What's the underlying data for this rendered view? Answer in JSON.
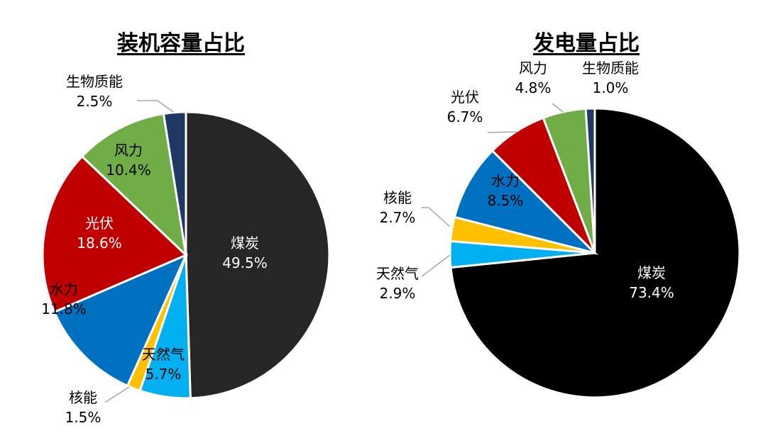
{
  "chart_data": [
    {
      "type": "pie",
      "title": "装机容量占比",
      "slices": [
        {
          "name": "煤炭",
          "value": 49.5,
          "label": "49.5%",
          "color": "#262626"
        },
        {
          "name": "天然气",
          "value": 5.7,
          "label": "5.7%",
          "color": "#00B0F0"
        },
        {
          "name": "核能",
          "value": 1.5,
          "label": "1.5%",
          "color": "#FFC000"
        },
        {
          "name": "水力",
          "value": 11.8,
          "label": "11.8%",
          "color": "#0070C0"
        },
        {
          "name": "光伏",
          "value": 18.6,
          "label": "18.6%",
          "color": "#C00000"
        },
        {
          "name": "风力",
          "value": 10.4,
          "label": "10.4%",
          "color": "#70AD47"
        },
        {
          "name": "生物质能",
          "value": 2.5,
          "label": "2.5%",
          "color": "#1F3864"
        }
      ]
    },
    {
      "type": "pie",
      "title": "发电量占比",
      "slices": [
        {
          "name": "煤炭",
          "value": 73.4,
          "label": "73.4%",
          "color": "#000000"
        },
        {
          "name": "天然气",
          "value": 2.9,
          "label": "2.9%",
          "color": "#00B0F0"
        },
        {
          "name": "核能",
          "value": 2.7,
          "label": "2.7%",
          "color": "#FFC000"
        },
        {
          "name": "水力",
          "value": 8.5,
          "label": "8.5%",
          "color": "#0070C0"
        },
        {
          "name": "光伏",
          "value": 6.7,
          "label": "6.7%",
          "color": "#C00000"
        },
        {
          "name": "风力",
          "value": 4.8,
          "label": "4.8%",
          "color": "#70AD47"
        },
        {
          "name": "生物质能",
          "value": 1.0,
          "label": "1.0%",
          "color": "#1F3864"
        }
      ]
    }
  ]
}
